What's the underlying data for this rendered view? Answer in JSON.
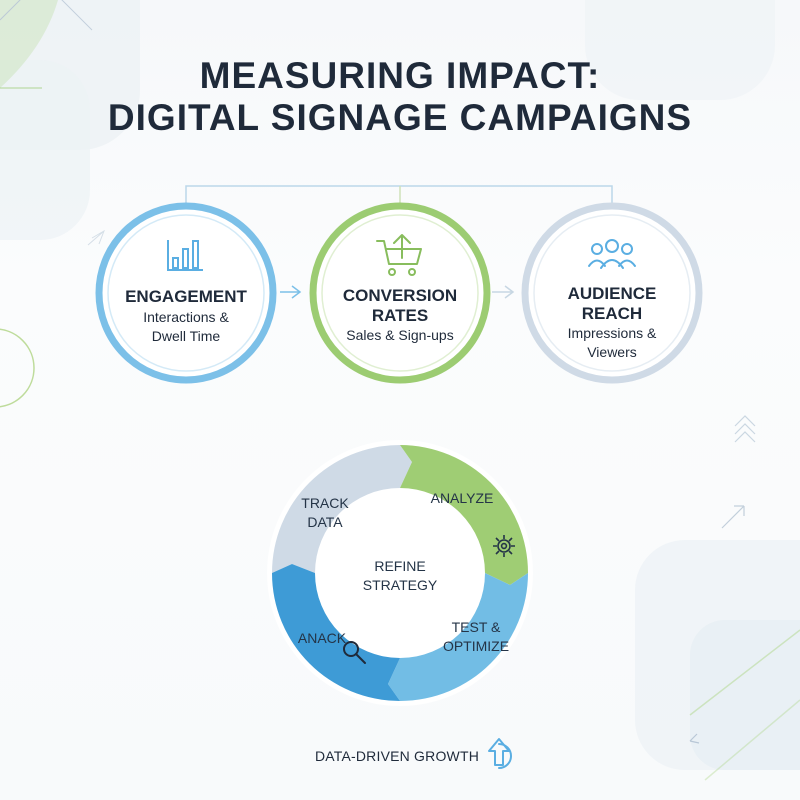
{
  "title": {
    "line1": "MEASURING IMPACT:",
    "line2": "DIGITAL SIGNAGE CAMPAIGNS"
  },
  "metrics": [
    {
      "title": [
        "ENGAGEMENT"
      ],
      "subtitle": [
        "Interactions &",
        "Dwell Time"
      ],
      "icon": "bar-chart-icon",
      "color": "#7cc0e8"
    },
    {
      "title": [
        "CONVERSION",
        "RATES"
      ],
      "subtitle": [
        "Sales & Sign-ups"
      ],
      "icon": "shopping-cart-icon",
      "color": "#9ccc72"
    },
    {
      "title": [
        "AUDIENCE",
        "REACH"
      ],
      "subtitle": [
        "Impressions &",
        "Viewers"
      ],
      "icon": "people-icon",
      "color": "#cfdae6"
    }
  ],
  "cycle": {
    "center": [
      "REFINE",
      "STRATEGY"
    ],
    "segments": [
      {
        "label": [
          "TRACK",
          "DATA"
        ],
        "color": "#cfdae6",
        "icon": ""
      },
      {
        "label": [
          "ANALYZE"
        ],
        "color": "#9fcd74",
        "icon": "gear-icon"
      },
      {
        "label": [
          "TEST &",
          "OPTIMIZE"
        ],
        "color": "#72bde5",
        "icon": ""
      },
      {
        "label": [
          "ANACK"
        ],
        "color": "#3e9bd6",
        "icon": "search-icon"
      }
    ]
  },
  "footer": {
    "label": "DATA-DRIVEN GROWTH",
    "icon": "up-arrow-icon"
  },
  "colors": {
    "title": "#1f2a3a",
    "blue": "#7cc0e8",
    "green": "#9ccc72",
    "gray": "#cfdae6",
    "dark_blue": "#3e9bd6"
  }
}
